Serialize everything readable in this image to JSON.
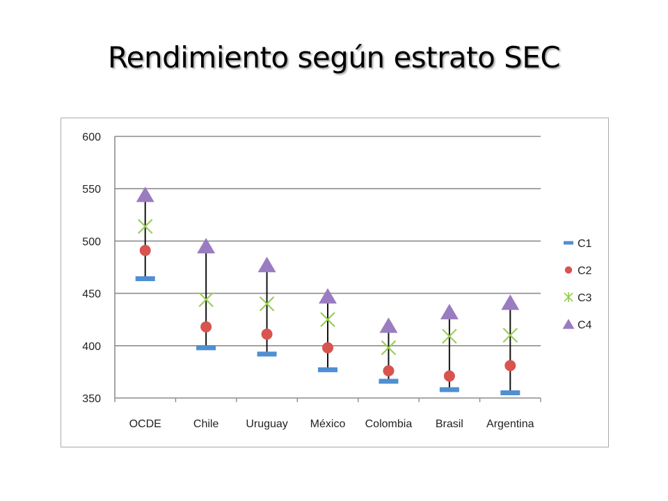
{
  "slide": {
    "title": "Rendimiento según estrato SEC"
  },
  "chart_data": {
    "type": "stock",
    "title": "",
    "xlabel": "",
    "ylabel": "",
    "categories": [
      "OCDE",
      "Chile",
      "Uruguay",
      "México",
      "Colombia",
      "Brasil",
      "Argentina"
    ],
    "ylim": [
      350,
      600
    ],
    "yticks": [
      350,
      400,
      450,
      500,
      550,
      600
    ],
    "grid": true,
    "legend_position": "right",
    "series": [
      {
        "name": "C1",
        "marker": "dash",
        "color": "#4f8fd2",
        "values": [
          464,
          398,
          392,
          377,
          366,
          358,
          355
        ]
      },
      {
        "name": "C2",
        "marker": "circle",
        "color": "#d9534f",
        "values": [
          491,
          418,
          411,
          398,
          376,
          371,
          381
        ]
      },
      {
        "name": "C3",
        "marker": "x",
        "color": "#9acd5a",
        "values": [
          514,
          444,
          440,
          425,
          398,
          409,
          410
        ]
      },
      {
        "name": "C4",
        "marker": "triangle",
        "color": "#9a7cc0",
        "values": [
          544,
          495,
          477,
          447,
          419,
          432,
          441
        ]
      }
    ]
  }
}
